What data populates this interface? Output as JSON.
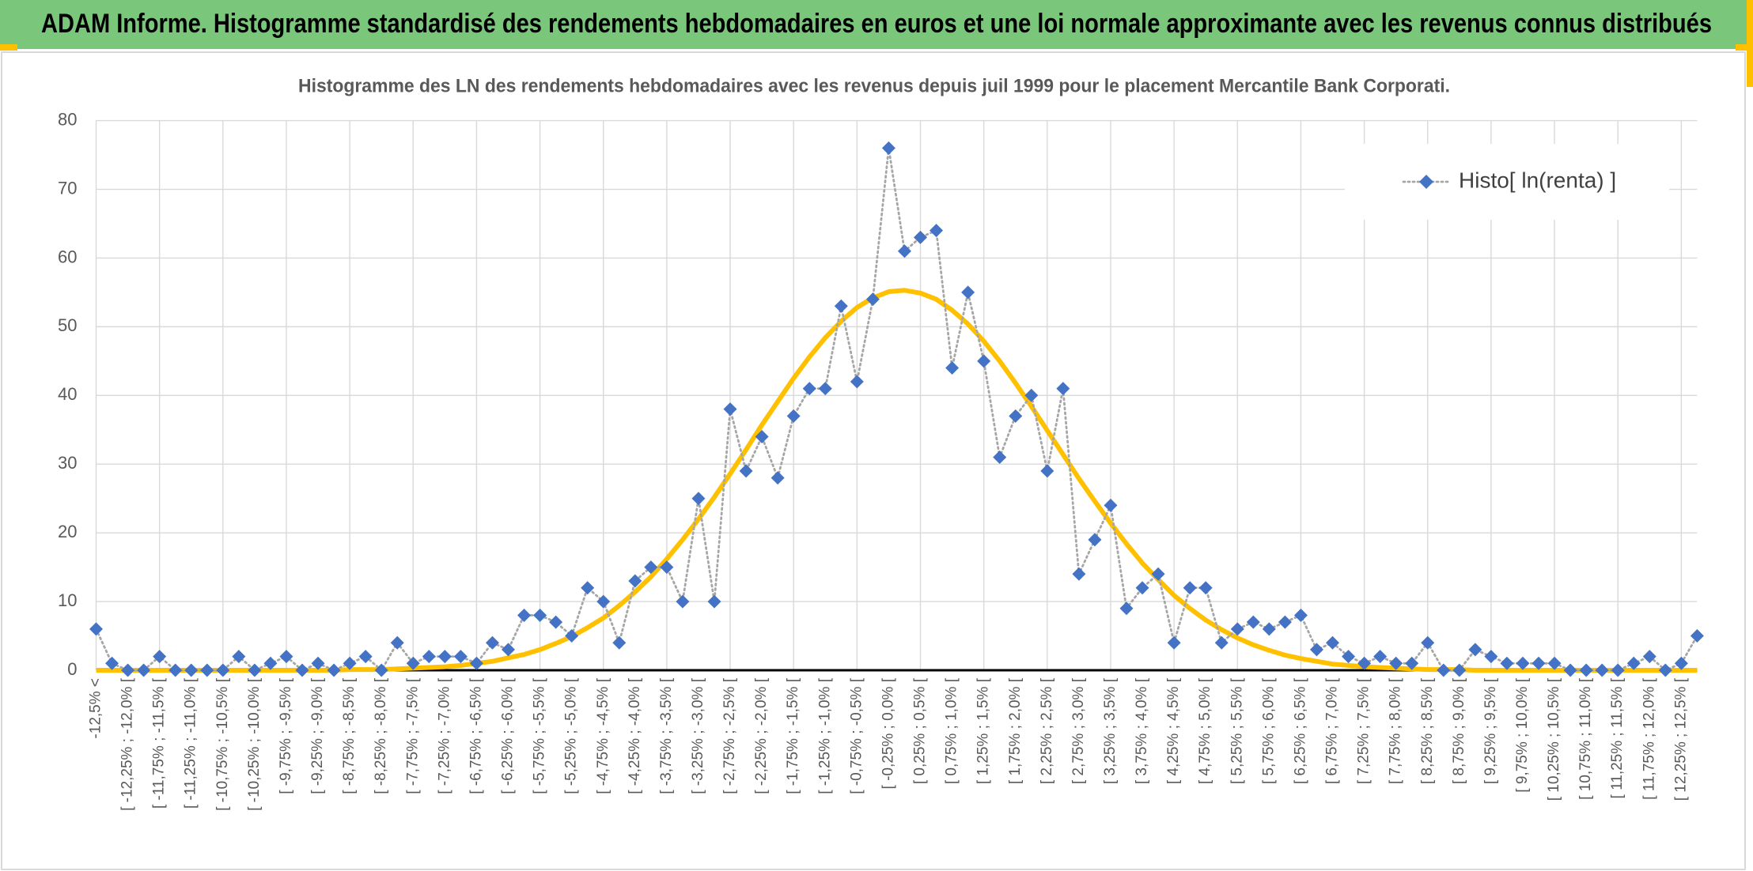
{
  "banner": {
    "title": "ADAM Informe. Histogramme standardisé des rendements hebdomadaires en euros et une loi normale approximante avec les revenus connus distribués"
  },
  "chart_data": {
    "type": "line",
    "title": "Histogramme des LN des rendements hebdomadaires avec les revenus depuis juil 1999 pour le placement Mercantile Bank Corporati.",
    "categories": [
      "-12,5% <",
      null,
      "[ -12,25% ; -12,0% [",
      null,
      "[ -11,75% ; -11,5% [",
      null,
      "[ -11,25% ; -11,0% [",
      null,
      "[ -10,75% ; -10,5% [",
      null,
      "[ -10,25% ; -10,0% [",
      null,
      "[ -9,75% ; -9,5% [",
      null,
      "[ -9,25% ; -9,0% [",
      null,
      "[ -8,75% ; -8,5% [",
      null,
      "[ -8,25% ; -8,0% [",
      null,
      "[ -7,75% ; -7,5% [",
      null,
      "[ -7,25% ; -7,0% [",
      null,
      "[ -6,75% ; -6,5% [",
      null,
      "[ -6,25% ; -6,0% [",
      null,
      "[ -5,75% ; -5,5% [",
      null,
      "[ -5,25% ; -5,0% [",
      null,
      "[ -4,75% ; -4,5% [",
      null,
      "[ -4,25% ; -4,0% [",
      null,
      "[ -3,75% ; -3,5% [",
      null,
      "[ -3,25% ; -3,0% [",
      null,
      "[ -2,75% ; -2,5% [",
      null,
      "[ -2,25% ; -2,0% [",
      null,
      "[ -1,75% ; -1,5% [",
      null,
      "[ -1,25% ; -1,0% [",
      null,
      "[ -0,75% ; -0,5% [",
      null,
      "[ -0,25% ; 0,0% [",
      null,
      "[ 0,25% ; 0,5% [",
      null,
      "[ 0,75% ; 1,0% [",
      null,
      "[ 1,25% ; 1,5% [",
      null,
      "[ 1,75% ; 2,0% [",
      null,
      "[ 2,25% ; 2,5% [",
      null,
      "[ 2,75% ; 3,0% [",
      null,
      "[ 3,25% ; 3,5% [",
      null,
      "[ 3,75% ; 4,0% [",
      null,
      "[ 4,25% ; 4,5% [",
      null,
      "[ 4,75% ; 5,0% [",
      null,
      "[ 5,25% ; 5,5% [",
      null,
      "[ 5,75% ; 6,0% [",
      null,
      "[ 6,25% ; 6,5% [",
      null,
      "[ 6,75% ; 7,0% [",
      null,
      "[ 7,25% ; 7,5% [",
      null,
      "[ 7,75% ; 8,0% [",
      null,
      "[ 8,25% ; 8,5% [",
      null,
      "[ 8,75% ; 9,0% [",
      null,
      "[ 9,25% ; 9,5% [",
      null,
      "[ 9,75% ; 10,0% [",
      null,
      "[ 10,25% ; 10,5% [",
      null,
      "[ 10,75% ; 11,0% [",
      null,
      "[ 11,25% ; 11,5% [",
      null,
      "[ 11,75% ; 12,0% [",
      null,
      "[ 12,25% ; 12,5% [",
      null
    ],
    "series": [
      {
        "name": "Histo[ ln(renta) ]",
        "color": "#4472c4",
        "line_color": "#a6a6a6",
        "values": [
          6,
          1,
          0,
          0,
          2,
          0,
          0,
          0,
          0,
          2,
          0,
          1,
          2,
          0,
          1,
          0,
          1,
          2,
          0,
          4,
          1,
          2,
          2,
          2,
          1,
          4,
          3,
          8,
          8,
          7,
          5,
          12,
          10,
          4,
          13,
          15,
          15,
          10,
          25,
          10,
          38,
          29,
          34,
          28,
          37,
          41,
          41,
          53,
          42,
          54,
          76,
          61,
          63,
          64,
          44,
          55,
          45,
          31,
          37,
          40,
          29,
          41,
          14,
          19,
          24,
          9,
          12,
          14,
          4,
          12,
          12,
          4,
          6,
          7,
          6,
          7,
          8,
          3,
          4,
          2,
          1,
          2,
          1,
          1,
          4,
          0,
          0,
          3,
          2,
          1,
          1,
          1,
          1,
          0,
          0,
          0,
          0,
          1,
          2,
          0,
          1,
          5
        ]
      },
      {
        "color": "#ffc000",
        "values": [
          0,
          0,
          0,
          0,
          0,
          0,
          0,
          0,
          0,
          0,
          0,
          0,
          0,
          0,
          0,
          0,
          0.1,
          0.1,
          0.1,
          0.2,
          0.3,
          0.4,
          0.5,
          0.7,
          1.0,
          1.3,
          1.8,
          2.3,
          3.0,
          3.9,
          4.9,
          6.2,
          7.6,
          9.4,
          11.4,
          13.6,
          16.2,
          19.0,
          22.0,
          25.2,
          28.6,
          32.1,
          35.7,
          39.1,
          42.5,
          45.6,
          48.4,
          50.8,
          52.8,
          54.2,
          55.1,
          55.3,
          54.9,
          54.0,
          52.4,
          50.4,
          47.9,
          45.0,
          41.8,
          38.4,
          34.9,
          31.4,
          27.9,
          24.6,
          21.4,
          18.4,
          15.6,
          13.2,
          10.9,
          9.0,
          7.3,
          5.9,
          4.7,
          3.7,
          2.9,
          2.2,
          1.7,
          1.3,
          0.9,
          0.7,
          0.5,
          0.4,
          0.3,
          0.2,
          0.1,
          0.1,
          0.1,
          0,
          0,
          0,
          0,
          0,
          0,
          0,
          0,
          0,
          0,
          0,
          0,
          0,
          0,
          0
        ]
      }
    ],
    "ylim": [
      0,
      80
    ],
    "yticks": [
      0,
      10,
      20,
      30,
      40,
      50,
      60,
      70,
      80
    ],
    "grid": true,
    "legend": "top-right"
  }
}
